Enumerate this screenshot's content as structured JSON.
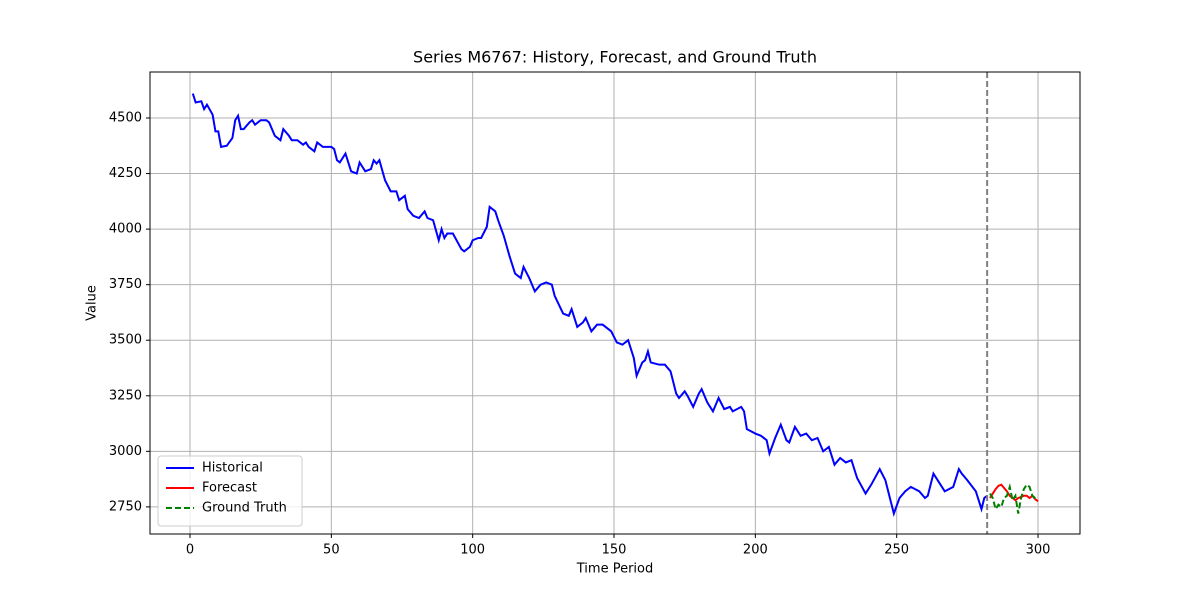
{
  "chart_data": {
    "type": "line",
    "title": "Series M6767: History, Forecast, and Ground Truth",
    "xlabel": "Time Period",
    "ylabel": "Value",
    "xlim": [
      -14.15,
      314.85
    ],
    "ylim": [
      2628,
      4707
    ],
    "xticks": [
      0,
      50,
      100,
      150,
      200,
      250,
      300
    ],
    "yticks": [
      2750,
      3000,
      3250,
      3500,
      3750,
      4000,
      4250,
      4500
    ],
    "grid": true,
    "legend": "lower left",
    "vline": {
      "x": 282,
      "color": "#808080",
      "linestyle": "dashed"
    },
    "series": [
      {
        "name": "Historical",
        "color": "#0000ff",
        "linestyle": "solid",
        "x": [
          1,
          2,
          4,
          5,
          6,
          8,
          9,
          10,
          11,
          13,
          15,
          16,
          17,
          18,
          19,
          21,
          22,
          23,
          25,
          27,
          28,
          30,
          32,
          33,
          35,
          36,
          38,
          40,
          41,
          42,
          44,
          45,
          47,
          50,
          51,
          52,
          53,
          55,
          57,
          59,
          60,
          62,
          64,
          65,
          66,
          67,
          69,
          71,
          73,
          74,
          76,
          77,
          79,
          81,
          83,
          84,
          86,
          88,
          89,
          90,
          91,
          93,
          96,
          97,
          99,
          100,
          102,
          103,
          105,
          106,
          108,
          109,
          111,
          113,
          115,
          116,
          117,
          118,
          120,
          122,
          124,
          126,
          128,
          129,
          132,
          134,
          135,
          137,
          139,
          140,
          142,
          144,
          146,
          149,
          151,
          153,
          155,
          157,
          158,
          160,
          161,
          162,
          163,
          166,
          168,
          170,
          172,
          173,
          175,
          176,
          178,
          180,
          181,
          183,
          185,
          187,
          189,
          191,
          192,
          195,
          196,
          197,
          200,
          202,
          204,
          205,
          207,
          209,
          211,
          212,
          214,
          216,
          218,
          220,
          222,
          224,
          226,
          228,
          230,
          232,
          234,
          236,
          239,
          241,
          244,
          246,
          248,
          249,
          251,
          253,
          255,
          258,
          260,
          261,
          263,
          265,
          267,
          270,
          272,
          273,
          275,
          278,
          280,
          281,
          282
        ],
        "values": [
          4610,
          4570,
          4575,
          4540,
          4560,
          4515,
          4440,
          4440,
          4370,
          4375,
          4410,
          4490,
          4510,
          4450,
          4450,
          4480,
          4490,
          4470,
          4490,
          4490,
          4480,
          4420,
          4400,
          4450,
          4420,
          4400,
          4400,
          4380,
          4390,
          4370,
          4350,
          4390,
          4370,
          4370,
          4360,
          4310,
          4300,
          4340,
          4260,
          4250,
          4300,
          4260,
          4270,
          4310,
          4295,
          4310,
          4220,
          4170,
          4170,
          4130,
          4150,
          4090,
          4060,
          4050,
          4080,
          4050,
          4040,
          3950,
          4000,
          3960,
          3980,
          3980,
          3910,
          3900,
          3920,
          3950,
          3960,
          3960,
          4010,
          4100,
          4080,
          4040,
          3970,
          3880,
          3800,
          3790,
          3780,
          3830,
          3780,
          3720,
          3750,
          3760,
          3750,
          3700,
          3620,
          3610,
          3640,
          3560,
          3580,
          3600,
          3540,
          3570,
          3570,
          3540,
          3490,
          3480,
          3500,
          3420,
          3340,
          3400,
          3410,
          3450,
          3400,
          3390,
          3390,
          3360,
          3260,
          3240,
          3270,
          3250,
          3200,
          3260,
          3280,
          3220,
          3180,
          3240,
          3190,
          3200,
          3180,
          3200,
          3180,
          3100,
          3080,
          3070,
          3050,
          2990,
          3060,
          3120,
          3050,
          3040,
          3110,
          3070,
          3080,
          3050,
          3060,
          3000,
          3020,
          2940,
          2970,
          2950,
          2960,
          2880,
          2810,
          2850,
          2920,
          2870,
          2770,
          2720,
          2790,
          2820,
          2840,
          2820,
          2790,
          2800,
          2900,
          2860,
          2820,
          2840,
          2920,
          2900,
          2870,
          2820,
          2740,
          2790,
          2800
        ]
      },
      {
        "name": "Forecast",
        "color": "#ff0000",
        "linestyle": "solid",
        "x": [
          283,
          284,
          285,
          286,
          287,
          288,
          289,
          290,
          291,
          292,
          293,
          294,
          295,
          296,
          297,
          298,
          299,
          300
        ],
        "values": [
          2790,
          2810,
          2830,
          2845,
          2850,
          2835,
          2820,
          2800,
          2790,
          2780,
          2790,
          2795,
          2800,
          2800,
          2790,
          2800,
          2785,
          2775
        ]
      },
      {
        "name": "Ground Truth",
        "color": "#008000",
        "linestyle": "dashed",
        "x": [
          283,
          284,
          285,
          286,
          287,
          288,
          289,
          290,
          291,
          292,
          293,
          294,
          295,
          296,
          297,
          298,
          299,
          300
        ],
        "values": [
          2810,
          2790,
          2740,
          2760,
          2750,
          2790,
          2800,
          2840,
          2780,
          2800,
          2720,
          2790,
          2830,
          2850,
          2840,
          2800,
          2790,
          2790
        ]
      }
    ]
  }
}
